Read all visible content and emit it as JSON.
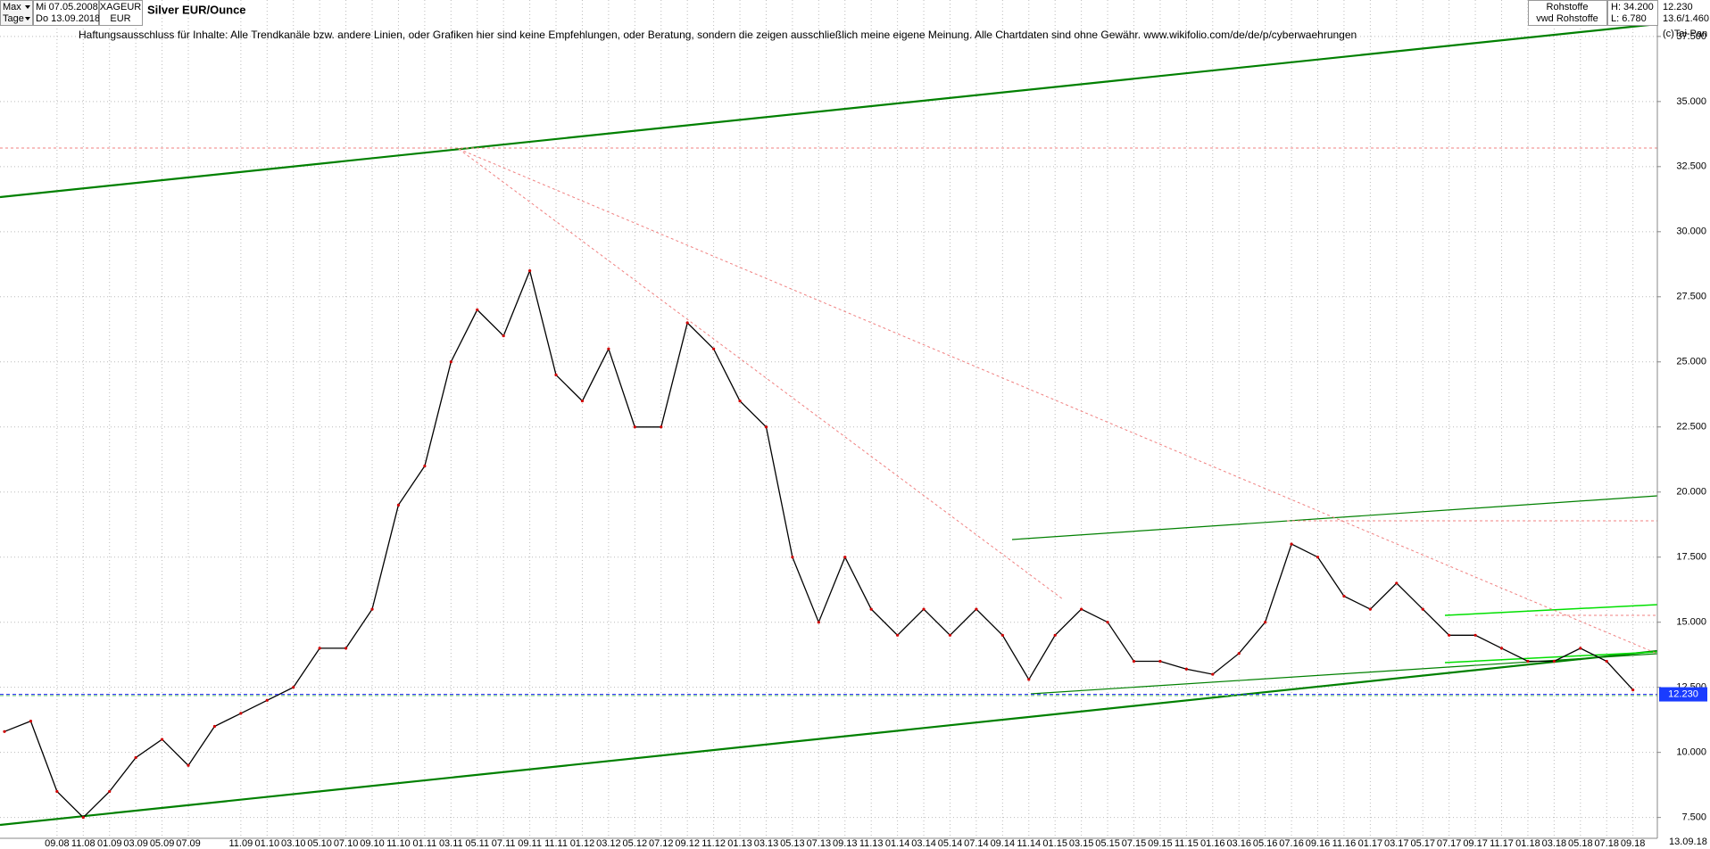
{
  "header": {
    "range": "Max",
    "unit": "Tage",
    "from": "Mi 07.05.2008",
    "to": "Do 13.09.2018",
    "symbol": "XAGEUR",
    "currency": "EUR",
    "market": "Rohstoffe",
    "source": "vwd Rohstoffe",
    "high": "H: 34.200",
    "low": "L: 6.780",
    "ratio": "13.6/1.460",
    "copyright": "(c)Tai-Pan",
    "date_end": "13.09.18"
  },
  "chart_data": {
    "type": "line",
    "title": "Silver EUR/Ounce",
    "subtitle": "Haftungsausschluss für Inhalte: Alle Trendkanäle bzw. andere Linien, oder Grafiken hier sind keine Empfehlungen, oder Beratung, sondern die zeigen ausschließlich meine eigene Meinung. Alle Chartdaten sind ohne Gewähr.  www.wikifolio.com/de/de/p/cyberwaehrungen",
    "categories": [
      null,
      null,
      "09.08",
      "11.08",
      "01.09",
      "03.09",
      "05.09",
      "07.09",
      null,
      "11.09",
      "01.10",
      "03.10",
      "05.10",
      "07.10",
      "09.10",
      "11.10",
      "01.11",
      "03.11",
      "05.11",
      "07.11",
      "09.11",
      "11.11",
      "01.12",
      "03.12",
      "05.12",
      "07.12",
      "09.12",
      "11.12",
      "01.13",
      "03.13",
      "05.13",
      "07.13",
      "09.13",
      "11.13",
      "01.14",
      "03.14",
      "05.14",
      "07.14",
      "09.14",
      "11.14",
      "01.15",
      "03.15",
      "05.15",
      "07.15",
      "09.15",
      "11.15",
      "01.16",
      "03.16",
      "05.16",
      "07.16",
      "09.16",
      "11.16",
      "01.17",
      "03.17",
      "05.17",
      "07.17",
      "09.17",
      "11.17",
      "01.18",
      "03.18",
      "05.18",
      "07.18",
      "09.18"
    ],
    "series": [
      {
        "name": "XAGEUR",
        "color": "#000000",
        "values": [
          10.8,
          11.2,
          8.5,
          7.5,
          8.5,
          9.8,
          10.5,
          9.5,
          11.0,
          11.5,
          12.0,
          12.5,
          14.0,
          14.0,
          15.5,
          19.5,
          21.0,
          25.0,
          27.0,
          26.0,
          28.5,
          24.5,
          23.5,
          25.5,
          22.5,
          22.5,
          26.5,
          25.5,
          23.5,
          22.5,
          17.5,
          15.0,
          17.5,
          15.5,
          14.5,
          15.5,
          14.5,
          15.5,
          14.5,
          12.8,
          14.5,
          15.5,
          15.0,
          13.5,
          13.5,
          13.2,
          13.0,
          13.8,
          15.0,
          18.0,
          17.5,
          16.0,
          15.5,
          16.5,
          15.5,
          14.5,
          14.5,
          14.0,
          13.5,
          13.5,
          14.0,
          13.5,
          12.4
        ]
      }
    ],
    "last": {
      "value": 12.23,
      "label": "12.230"
    },
    "ylim": [
      6.7,
      38.9
    ],
    "yticks": [
      {
        "value": 7.5,
        "label": "7.500"
      },
      {
        "value": 10,
        "label": "10.000"
      },
      {
        "value": 12.5,
        "label": "12.500"
      },
      {
        "value": 15,
        "label": "15.000"
      },
      {
        "value": 17.5,
        "label": "17.500"
      },
      {
        "value": 20,
        "label": "20.000"
      },
      {
        "value": 22.5,
        "label": "22.500"
      },
      {
        "value": 25,
        "label": "25.000"
      },
      {
        "value": 27.5,
        "label": "27.500"
      },
      {
        "value": 30,
        "label": "30.000"
      },
      {
        "value": 32.5,
        "label": "32.500"
      },
      {
        "value": 35,
        "label": "35.000"
      },
      {
        "value": 37.5,
        "label": "37.500"
      }
    ],
    "grid": true
  }
}
